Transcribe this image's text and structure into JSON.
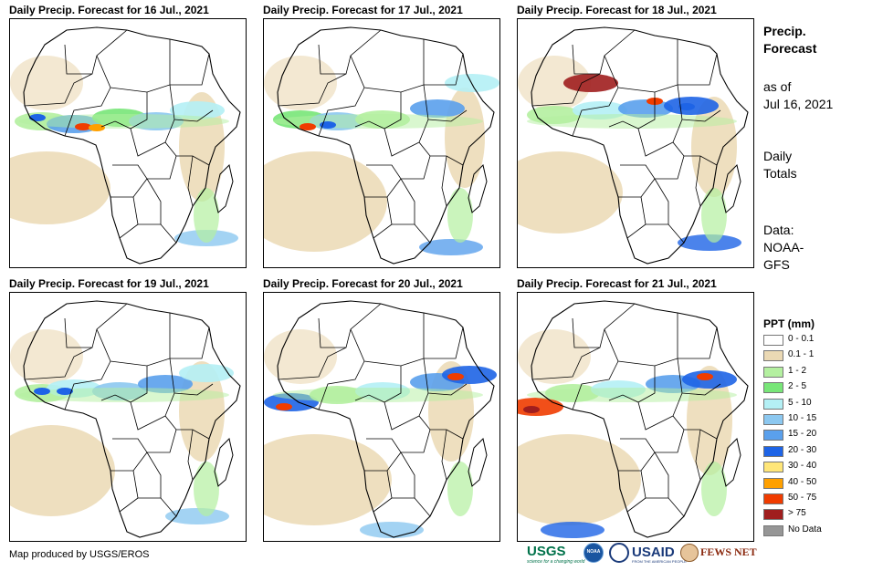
{
  "sidebar": {
    "title": "Precip. Forecast",
    "as_of_label": "as of",
    "as_of_date": "Jul 16, 2021",
    "totals_label": "Daily Totals",
    "data_label": "Data:",
    "data_source": "NOAA-GFS"
  },
  "panels": [
    {
      "title": "Daily Precip. Forecast for 16 Jul., 2021"
    },
    {
      "title": "Daily Precip. Forecast for 17 Jul., 2021"
    },
    {
      "title": "Daily Precip. Forecast for 18 Jul., 2021"
    },
    {
      "title": "Daily Precip. Forecast for 19 Jul., 2021"
    },
    {
      "title": "Daily Precip. Forecast for 20 Jul., 2021"
    },
    {
      "title": "Daily Precip. Forecast for 21 Jul., 2021"
    }
  ],
  "legend": {
    "title": "PPT (mm)",
    "items": [
      {
        "label": "0 - 0.1",
        "color": "#ffffff"
      },
      {
        "label": "0.1 - 1",
        "color": "#ebd9b4"
      },
      {
        "label": "1 - 2",
        "color": "#b4f0a0"
      },
      {
        "label": "2 - 5",
        "color": "#78e678"
      },
      {
        "label": "5 - 10",
        "color": "#b4f0f5"
      },
      {
        "label": "10 - 15",
        "color": "#8cc8f0"
      },
      {
        "label": "15 - 20",
        "color": "#5aa0ec"
      },
      {
        "label": "20 - 30",
        "color": "#1e64e6"
      },
      {
        "label": "30 - 40",
        "color": "#ffe678"
      },
      {
        "label": "40 - 50",
        "color": "#ffa000"
      },
      {
        "label": "50 - 75",
        "color": "#f03c00"
      },
      {
        "label": "> 75",
        "color": "#a01e1e"
      },
      {
        "label": "No Data",
        "color": "#969696"
      }
    ]
  },
  "footer": {
    "credit": "Map produced by USGS/EROS",
    "logos": [
      "USGS",
      "NOAA",
      "USAID",
      "FEWS NET"
    ],
    "usgs_tagline": "science for a changing world",
    "usaid_tagline": "FROM THE AMERICAN PEOPLE"
  },
  "colors": {
    "map_border": "#000000",
    "country_line": "#000000"
  }
}
